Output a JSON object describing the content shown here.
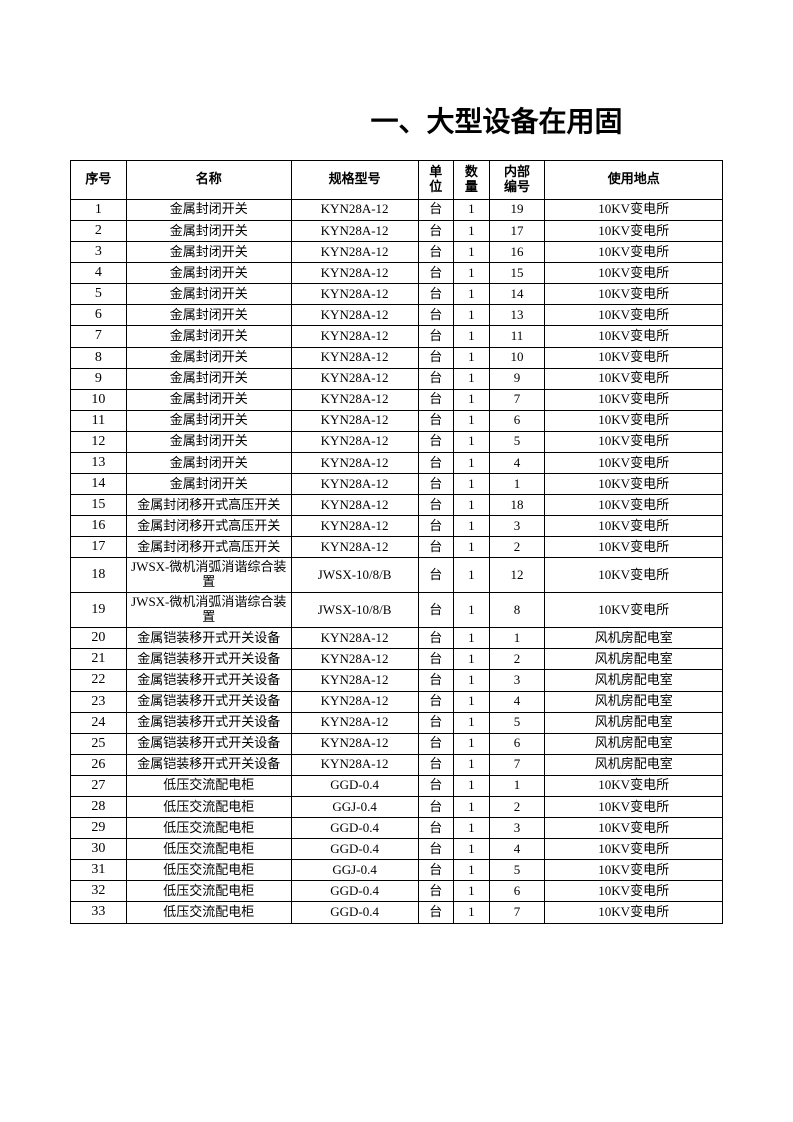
{
  "title": "一、大型设备在用固",
  "columns": [
    "序号",
    "名称",
    "规格型号",
    "单位",
    "数量",
    "内部编号",
    "使用地点"
  ],
  "colHeaderLines": {
    "unit": "单\n位",
    "qty": "数\n量",
    "code": "内部\n编号"
  },
  "rows": [
    {
      "seq": "1",
      "name": "金属封闭开关",
      "spec": "KYN28A-12",
      "unit": "台",
      "qty": "1",
      "code": "19",
      "loc": "10KV变电所"
    },
    {
      "seq": "2",
      "name": "金属封闭开关",
      "spec": "KYN28A-12",
      "unit": "台",
      "qty": "1",
      "code": "17",
      "loc": "10KV变电所"
    },
    {
      "seq": "3",
      "name": "金属封闭开关",
      "spec": "KYN28A-12",
      "unit": "台",
      "qty": "1",
      "code": "16",
      "loc": "10KV变电所"
    },
    {
      "seq": "4",
      "name": "金属封闭开关",
      "spec": "KYN28A-12",
      "unit": "台",
      "qty": "1",
      "code": "15",
      "loc": "10KV变电所"
    },
    {
      "seq": "5",
      "name": "金属封闭开关",
      "spec": "KYN28A-12",
      "unit": "台",
      "qty": "1",
      "code": "14",
      "loc": "10KV变电所"
    },
    {
      "seq": "6",
      "name": "金属封闭开关",
      "spec": "KYN28A-12",
      "unit": "台",
      "qty": "1",
      "code": "13",
      "loc": "10KV变电所"
    },
    {
      "seq": "7",
      "name": "金属封闭开关",
      "spec": "KYN28A-12",
      "unit": "台",
      "qty": "1",
      "code": "11",
      "loc": "10KV变电所"
    },
    {
      "seq": "8",
      "name": "金属封闭开关",
      "spec": "KYN28A-12",
      "unit": "台",
      "qty": "1",
      "code": "10",
      "loc": "10KV变电所"
    },
    {
      "seq": "9",
      "name": "金属封闭开关",
      "spec": "KYN28A-12",
      "unit": "台",
      "qty": "1",
      "code": "9",
      "loc": "10KV变电所"
    },
    {
      "seq": "10",
      "name": "金属封闭开关",
      "spec": "KYN28A-12",
      "unit": "台",
      "qty": "1",
      "code": "7",
      "loc": "10KV变电所"
    },
    {
      "seq": "11",
      "name": "金属封闭开关",
      "spec": "KYN28A-12",
      "unit": "台",
      "qty": "1",
      "code": "6",
      "loc": "10KV变电所"
    },
    {
      "seq": "12",
      "name": "金属封闭开关",
      "spec": "KYN28A-12",
      "unit": "台",
      "qty": "1",
      "code": "5",
      "loc": "10KV变电所"
    },
    {
      "seq": "13",
      "name": "金属封闭开关",
      "spec": "KYN28A-12",
      "unit": "台",
      "qty": "1",
      "code": "4",
      "loc": "10KV变电所"
    },
    {
      "seq": "14",
      "name": "金属封闭开关",
      "spec": "KYN28A-12",
      "unit": "台",
      "qty": "1",
      "code": "1",
      "loc": "10KV变电所"
    },
    {
      "seq": "15",
      "name": "金属封闭移开式高压开关",
      "spec": "KYN28A-12",
      "unit": "台",
      "qty": "1",
      "code": "18",
      "loc": "10KV变电所",
      "tall": true
    },
    {
      "seq": "16",
      "name": "金属封闭移开式高压开关",
      "spec": "KYN28A-12",
      "unit": "台",
      "qty": "1",
      "code": "3",
      "loc": "10KV变电所",
      "tall": true
    },
    {
      "seq": "17",
      "name": "金属封闭移开式高压开关",
      "spec": "KYN28A-12",
      "unit": "台",
      "qty": "1",
      "code": "2",
      "loc": "10KV变电所",
      "tall": true
    },
    {
      "seq": "18",
      "name": "JWSX-微机消弧消谐综合装置",
      "spec": "JWSX-10/8/B",
      "unit": "台",
      "qty": "1",
      "code": "12",
      "loc": "10KV变电所",
      "tall": true
    },
    {
      "seq": "19",
      "name": "JWSX-微机消弧消谐综合装置",
      "spec": "JWSX-10/8/B",
      "unit": "台",
      "qty": "1",
      "code": "8",
      "loc": "10KV变电所",
      "tall": true
    },
    {
      "seq": "20",
      "name": "金属铠装移开式开关设备",
      "spec": "KYN28A-12",
      "unit": "台",
      "qty": "1",
      "code": "1",
      "loc": "风机房配电室",
      "tall": true
    },
    {
      "seq": "21",
      "name": "金属铠装移开式开关设备",
      "spec": "KYN28A-12",
      "unit": "台",
      "qty": "1",
      "code": "2",
      "loc": "风机房配电室",
      "tall": true
    },
    {
      "seq": "22",
      "name": "金属铠装移开式开关设备",
      "spec": "KYN28A-12",
      "unit": "台",
      "qty": "1",
      "code": "3",
      "loc": "风机房配电室",
      "tall": true
    },
    {
      "seq": "23",
      "name": "金属铠装移开式开关设备",
      "spec": "KYN28A-12",
      "unit": "台",
      "qty": "1",
      "code": "4",
      "loc": "风机房配电室",
      "tall": true
    },
    {
      "seq": "24",
      "name": "金属铠装移开式开关设备",
      "spec": "KYN28A-12",
      "unit": "台",
      "qty": "1",
      "code": "5",
      "loc": "风机房配电室",
      "tall": true
    },
    {
      "seq": "25",
      "name": "金属铠装移开式开关设备",
      "spec": "KYN28A-12",
      "unit": "台",
      "qty": "1",
      "code": "6",
      "loc": "风机房配电室",
      "tall": true
    },
    {
      "seq": "26",
      "name": "金属铠装移开式开关设备",
      "spec": "KYN28A-12",
      "unit": "台",
      "qty": "1",
      "code": "7",
      "loc": "风机房配电室",
      "tall": true
    },
    {
      "seq": "27",
      "name": "低压交流配电柜",
      "spec": "GGD-0.4",
      "unit": "台",
      "qty": "1",
      "code": "1",
      "loc": "10KV变电所"
    },
    {
      "seq": "28",
      "name": "低压交流配电柜",
      "spec": "GGJ-0.4",
      "unit": "台",
      "qty": "1",
      "code": "2",
      "loc": "10KV变电所"
    },
    {
      "seq": "29",
      "name": "低压交流配电柜",
      "spec": "GGD-0.4",
      "unit": "台",
      "qty": "1",
      "code": "3",
      "loc": "10KV变电所"
    },
    {
      "seq": "30",
      "name": "低压交流配电柜",
      "spec": "GGD-0.4",
      "unit": "台",
      "qty": "1",
      "code": "4",
      "loc": "10KV变电所"
    },
    {
      "seq": "31",
      "name": "低压交流配电柜",
      "spec": "GGJ-0.4",
      "unit": "台",
      "qty": "1",
      "code": "5",
      "loc": "10KV变电所"
    },
    {
      "seq": "32",
      "name": "低压交流配电柜",
      "spec": "GGD-0.4",
      "unit": "台",
      "qty": "1",
      "code": "6",
      "loc": "10KV变电所"
    },
    {
      "seq": "33",
      "name": "低压交流配电柜",
      "spec": "GGD-0.4",
      "unit": "台",
      "qty": "1",
      "code": "7",
      "loc": "10KV变电所"
    }
  ]
}
